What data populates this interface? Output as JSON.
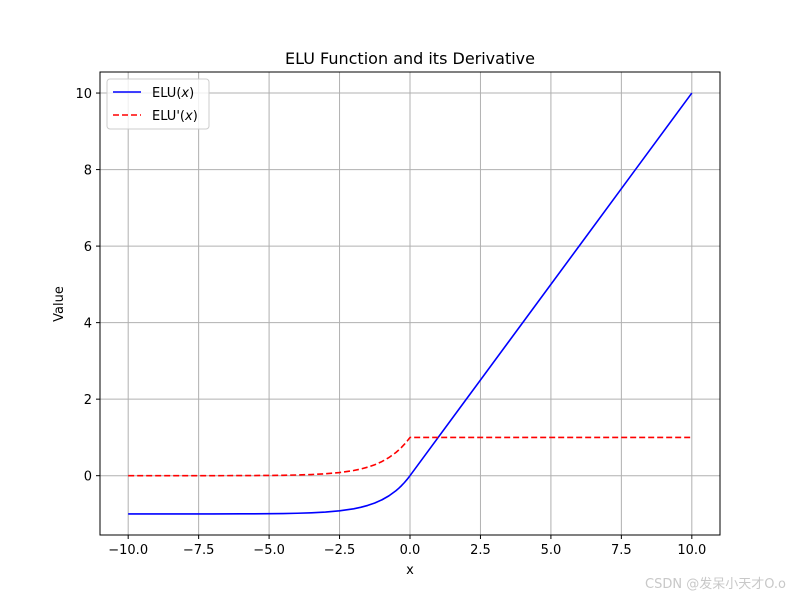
{
  "chart_data": {
    "type": "line",
    "title": "ELU Function and its Derivative",
    "xlabel": "x",
    "ylabel": "Value",
    "xlim": [
      -11.0,
      11.0
    ],
    "ylim": [
      -1.55,
      10.55
    ],
    "xticks": [
      -10.0,
      -7.5,
      -5.0,
      -2.5,
      0.0,
      2.5,
      5.0,
      7.5,
      10.0
    ],
    "xtick_labels": [
      "−10.0",
      "−7.5",
      "−5.0",
      "−2.5",
      "0.0",
      "2.5",
      "5.0",
      "7.5",
      "10.0"
    ],
    "yticks": [
      0,
      2,
      4,
      6,
      8,
      10
    ],
    "ytick_labels": [
      "0",
      "2",
      "4",
      "6",
      "8",
      "10"
    ],
    "grid": true,
    "legend_position": "top-left",
    "series": [
      {
        "name": "ELU(x)",
        "legend_main": "ELU(",
        "legend_var": "x",
        "legend_end": ")",
        "color": "#0000ff",
        "style": "solid",
        "x": [
          -10,
          -9,
          -8,
          -7,
          -6,
          -5,
          -4.5,
          -4,
          -3.5,
          -3,
          -2.5,
          -2,
          -1.75,
          -1.5,
          -1.25,
          -1,
          -0.75,
          -0.5,
          -0.4,
          -0.3,
          -0.2,
          -0.1,
          0,
          2,
          4,
          6,
          8,
          10
        ],
        "y": [
          -1.0,
          -0.9999,
          -0.9997,
          -0.9991,
          -0.9975,
          -0.9933,
          -0.9889,
          -0.9817,
          -0.9698,
          -0.9502,
          -0.9179,
          -0.8647,
          -0.8262,
          -0.7769,
          -0.7135,
          -0.6321,
          -0.5276,
          -0.3935,
          -0.3297,
          -0.2592,
          -0.1813,
          -0.0952,
          0,
          2,
          4,
          6,
          8,
          10
        ]
      },
      {
        "name": "ELU'(x)",
        "legend_main": "ELU'(",
        "legend_var": "x",
        "legend_end": ")",
        "color": "#ff0000",
        "style": "dashed",
        "x": [
          -10,
          -9,
          -8,
          -7,
          -6,
          -5,
          -4.5,
          -4,
          -3.5,
          -3,
          -2.5,
          -2,
          -1.75,
          -1.5,
          -1.25,
          -1,
          -0.75,
          -0.5,
          -0.4,
          -0.3,
          -0.2,
          -0.1,
          0,
          2,
          4,
          6,
          8,
          10
        ],
        "y": [
          0.0,
          0.0001,
          0.0003,
          0.0009,
          0.0025,
          0.0067,
          0.0111,
          0.0183,
          0.0302,
          0.0498,
          0.0821,
          0.1353,
          0.1738,
          0.2231,
          0.2865,
          0.3679,
          0.4724,
          0.6065,
          0.6703,
          0.7408,
          0.8187,
          0.9048,
          1,
          1,
          1,
          1,
          1,
          1
        ]
      }
    ]
  },
  "watermark": "CSDN @发呆小天才O.o"
}
